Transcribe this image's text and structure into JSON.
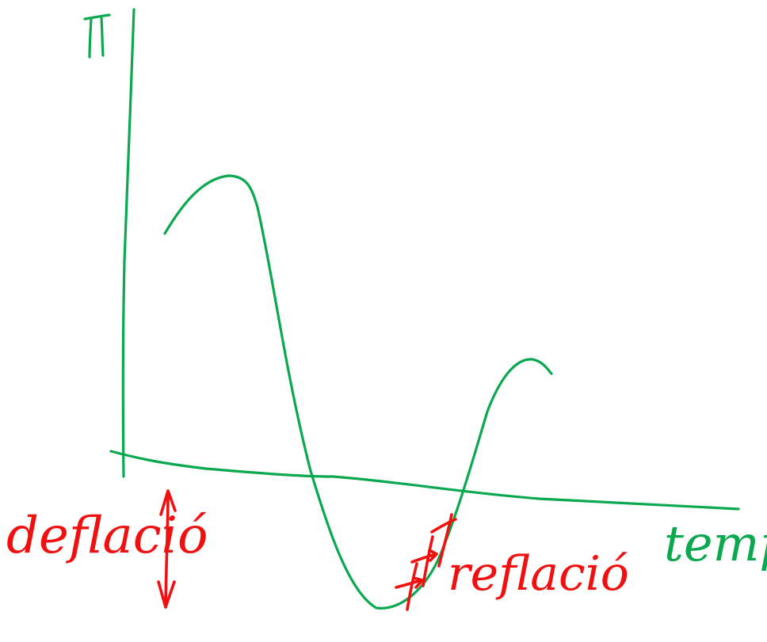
{
  "colors": {
    "axes": "#0aa84f",
    "curve": "#0aa84f",
    "annotations": "#f01010",
    "background": "#ffffff"
  },
  "labels": {
    "y_axis": "π",
    "x_axis": "temps",
    "left_annotation": "deflació",
    "right_annotation": "reflació"
  },
  "annotations": {
    "left_arrow": "double-headed-vertical-arrow",
    "right_arrows": "upward-diagonal-arrows"
  }
}
